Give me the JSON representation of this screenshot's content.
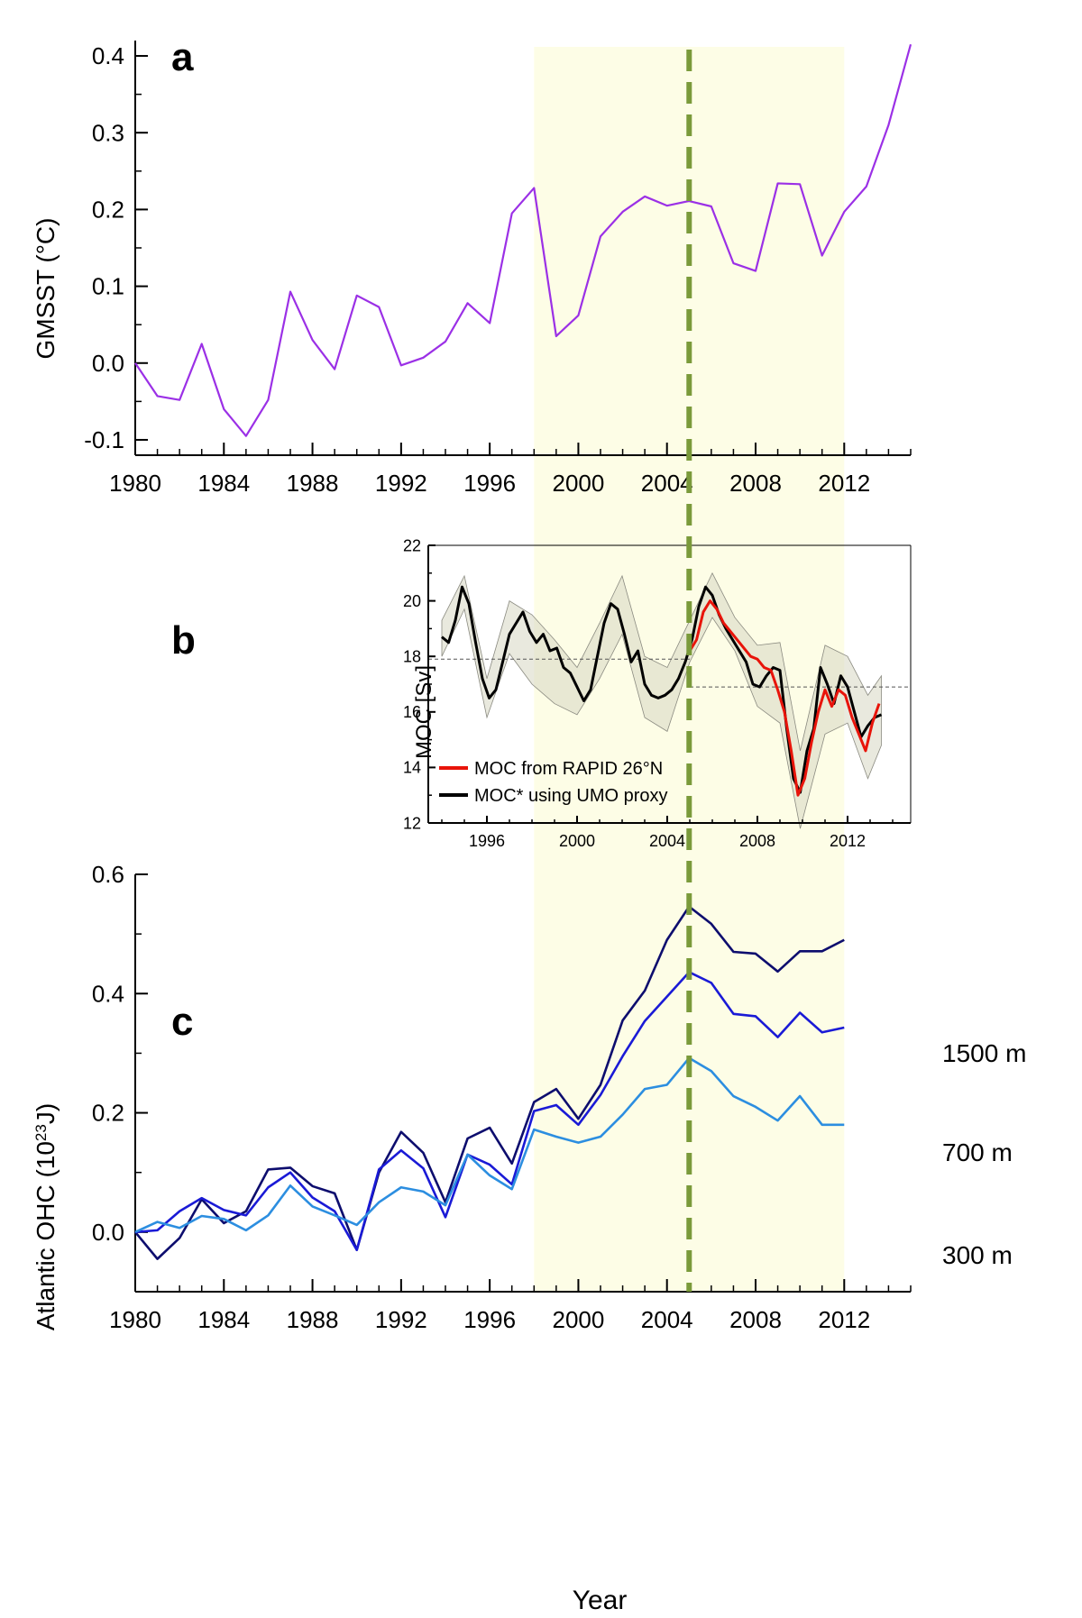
{
  "chart_data": [
    {
      "panel": "a",
      "type": "line",
      "ylabel": "GMSST (°C)",
      "xlabel": "",
      "xlim": [
        1980,
        2015
      ],
      "ylim": [
        -0.12,
        0.42
      ],
      "xticks": [
        "1980",
        "1984",
        "1988",
        "1992",
        "1996",
        "2000",
        "2004",
        "2008",
        "2012"
      ],
      "yticks": [
        "-0.1",
        "0.0",
        "0.1",
        "0.2",
        "0.3",
        "0.4"
      ],
      "shaded_span": [
        1998,
        2012
      ],
      "vline": 2005,
      "series": [
        {
          "color": "#9b30e6",
          "x": [
            1980,
            1981,
            1982,
            1983,
            1984,
            1985,
            1986,
            1987,
            1988,
            1989,
            1990,
            1991,
            1992,
            1993,
            1994,
            1995,
            1996,
            1997,
            1998,
            1999,
            2000,
            2001,
            2002,
            2003,
            2004,
            2005,
            2006,
            2007,
            2008,
            2009,
            2010,
            2011,
            2012,
            2013,
            2014,
            2015
          ],
          "values": [
            0.0,
            -0.043,
            -0.048,
            0.025,
            -0.06,
            -0.095,
            -0.048,
            0.093,
            0.03,
            -0.008,
            0.088,
            0.073,
            -0.003,
            0.007,
            0.028,
            0.078,
            0.052,
            0.195,
            0.228,
            0.035,
            0.062,
            0.165,
            0.197,
            0.217,
            0.205,
            0.211,
            0.204,
            0.13,
            0.12,
            0.234,
            0.233,
            0.14,
            0.197,
            0.23,
            0.31,
            0.415
          ]
        }
      ]
    },
    {
      "panel": "b",
      "type": "line",
      "ylabel": "MOC [Sv]",
      "xlabel": "",
      "xlim": [
        1993.4,
        2014.8
      ],
      "ylim": [
        12,
        22
      ],
      "xticks": [
        "1996",
        "2000",
        "2004",
        "2008",
        "2012"
      ],
      "yticks": [
        "12",
        "14",
        "16",
        "18",
        "20",
        "22"
      ],
      "hlines": [
        {
          "x": [
            1993.4,
            2005.0
          ],
          "value": 17.9
        },
        {
          "x": [
            2005.0,
            2014.8
          ],
          "value": 16.9
        }
      ],
      "series": [
        {
          "name": "MOC* using UMO proxy",
          "color": "#000000",
          "x": [
            1994.0,
            1994.3,
            1994.6,
            1994.9,
            1995.2,
            1995.5,
            1995.8,
            1996.1,
            1996.4,
            1996.7,
            1997.0,
            1997.3,
            1997.6,
            1997.9,
            1998.2,
            1998.5,
            1998.8,
            1999.1,
            1999.4,
            1999.7,
            2000.0,
            2000.3,
            2000.6,
            2000.9,
            2001.2,
            2001.5,
            2001.8,
            2002.1,
            2002.4,
            2002.7,
            2003.0,
            2003.3,
            2003.6,
            2003.9,
            2004.2,
            2004.5,
            2004.8,
            2005.1,
            2005.4,
            2005.7,
            2006.0,
            2006.3,
            2006.6,
            2006.9,
            2007.2,
            2007.5,
            2007.8,
            2008.1,
            2008.4,
            2008.7,
            2009.0,
            2009.3,
            2009.6,
            2009.9,
            2010.2,
            2010.5,
            2010.8,
            2011.1,
            2011.4,
            2011.7,
            2012.0,
            2012.3,
            2012.6,
            2012.9,
            2013.2,
            2013.5
          ],
          "values": [
            18.7,
            18.5,
            19.3,
            20.5,
            19.9,
            18.5,
            17.2,
            16.5,
            16.8,
            17.8,
            18.8,
            19.2,
            19.6,
            18.9,
            18.5,
            18.8,
            18.2,
            18.3,
            17.6,
            17.4,
            16.9,
            16.4,
            16.8,
            18.0,
            19.2,
            19.9,
            19.7,
            18.8,
            17.8,
            18.2,
            17.0,
            16.6,
            16.5,
            16.6,
            16.8,
            17.2,
            17.8,
            18.6,
            19.8,
            20.5,
            20.2,
            19.5,
            19.0,
            18.6,
            18.2,
            17.8,
            17.0,
            16.9,
            17.3,
            17.6,
            17.5,
            15.4,
            13.6,
            13.1,
            14.6,
            15.4,
            17.6,
            17.0,
            16.3,
            17.3,
            16.9,
            16.0,
            15.1,
            15.5,
            15.8,
            15.9
          ]
        },
        {
          "name": "MOC from RAPID 26°N",
          "color": "#e8140a",
          "x": [
            2005.0,
            2005.3,
            2005.6,
            2005.9,
            2006.2,
            2006.5,
            2006.8,
            2007.1,
            2007.4,
            2007.7,
            2008.0,
            2008.3,
            2008.6,
            2008.9,
            2009.2,
            2009.5,
            2009.8,
            2010.1,
            2010.4,
            2010.7,
            2011.0,
            2011.3,
            2011.6,
            2011.9,
            2012.2,
            2012.5,
            2012.8,
            2013.1,
            2013.4
          ],
          "values": [
            18.2,
            18.6,
            19.6,
            20.0,
            19.7,
            19.2,
            18.9,
            18.6,
            18.3,
            18.0,
            17.9,
            17.6,
            17.5,
            16.8,
            16.0,
            14.6,
            13.0,
            13.6,
            14.9,
            16.0,
            16.8,
            16.2,
            16.8,
            16.6,
            15.8,
            15.2,
            14.6,
            15.6,
            16.3
          ]
        }
      ],
      "band": {
        "color": "#d7d7c2",
        "x": [
          1994.0,
          1995.0,
          1996.0,
          1997.0,
          1998.0,
          1999.0,
          2000.0,
          2001.0,
          2002.0,
          2003.0,
          2004.0,
          2005.0,
          2006.0,
          2007.0,
          2008.0,
          2009.0,
          2009.9,
          2011.0,
          2012.0,
          2012.9,
          2013.5
        ],
        "lower": [
          18.0,
          19.7,
          15.8,
          18.1,
          17.0,
          16.3,
          15.9,
          17.2,
          18.8,
          15.8,
          15.3,
          17.8,
          19.4,
          18.2,
          16.2,
          15.6,
          11.8,
          15.2,
          15.6,
          13.6,
          14.8
        ],
        "upper": [
          19.3,
          20.9,
          17.2,
          20.0,
          19.5,
          18.6,
          17.6,
          19.2,
          20.9,
          18.0,
          17.6,
          19.3,
          21.0,
          19.4,
          18.4,
          18.5,
          14.6,
          18.4,
          18.0,
          16.6,
          17.3
        ]
      },
      "legend": "bottom-left"
    },
    {
      "panel": "c",
      "type": "line",
      "ylabel": "Atlantic OHC (10²³J)",
      "xlabel": "Year",
      "xlim": [
        1980,
        2015
      ],
      "ylim": [
        -0.1,
        0.6
      ],
      "xticks": [
        "1980",
        "1984",
        "1988",
        "1992",
        "1996",
        "2000",
        "2004",
        "2008",
        "2012"
      ],
      "yticks": [
        "0.0",
        "0.2",
        "0.4",
        "0.6"
      ],
      "shaded_span": [
        1998,
        2012
      ],
      "vline": 2005,
      "series": [
        {
          "name": "1500 m",
          "color": "#0d0d6e",
          "x": [
            1980,
            1981,
            1982,
            1983,
            1984,
            1985,
            1986,
            1987,
            1988,
            1989,
            1990,
            1991,
            1992,
            1993,
            1994,
            1995,
            1996,
            1997,
            1998,
            1999,
            2000,
            2001,
            2002,
            2003,
            2004,
            2005,
            2006,
            2007,
            2008,
            2009,
            2010,
            2011,
            2012
          ],
          "values": [
            0.0,
            -0.045,
            -0.01,
            0.055,
            0.015,
            0.035,
            0.105,
            0.108,
            0.077,
            0.065,
            -0.03,
            0.1,
            0.168,
            0.133,
            0.05,
            0.157,
            0.175,
            0.115,
            0.218,
            0.24,
            0.19,
            0.247,
            0.355,
            0.405,
            0.49,
            0.546,
            0.517,
            0.47,
            0.467,
            0.437,
            0.471,
            0.471,
            0.49
          ]
        },
        {
          "name": "700 m",
          "color": "#1a1ad6",
          "x": [
            1980,
            1981,
            1982,
            1983,
            1984,
            1985,
            1986,
            1987,
            1988,
            1989,
            1990,
            1991,
            1992,
            1993,
            1994,
            1995,
            1996,
            1997,
            1998,
            1999,
            2000,
            2001,
            2002,
            2003,
            2004,
            2005,
            2006,
            2007,
            2008,
            2009,
            2010,
            2011,
            2012
          ],
          "values": [
            0.0,
            0.003,
            0.035,
            0.057,
            0.037,
            0.028,
            0.075,
            0.1,
            0.058,
            0.035,
            -0.03,
            0.105,
            0.137,
            0.107,
            0.025,
            0.13,
            0.113,
            0.08,
            0.203,
            0.213,
            0.18,
            0.23,
            0.295,
            0.354,
            0.395,
            0.436,
            0.418,
            0.366,
            0.362,
            0.327,
            0.368,
            0.335,
            0.343
          ]
        },
        {
          "name": "300 m",
          "color": "#2c8ee0",
          "x": [
            1980,
            1981,
            1982,
            1983,
            1984,
            1985,
            1986,
            1987,
            1988,
            1989,
            1990,
            1991,
            1992,
            1993,
            1994,
            1995,
            1996,
            1997,
            1998,
            1999,
            2000,
            2001,
            2002,
            2003,
            2004,
            2005,
            2006,
            2007,
            2008,
            2009,
            2010,
            2011,
            2012
          ],
          "values": [
            0.0,
            0.017,
            0.007,
            0.027,
            0.022,
            0.003,
            0.028,
            0.078,
            0.043,
            0.028,
            0.012,
            0.05,
            0.075,
            0.068,
            0.045,
            0.13,
            0.095,
            0.072,
            0.172,
            0.16,
            0.15,
            0.16,
            0.197,
            0.24,
            0.247,
            0.292,
            0.27,
            0.228,
            0.21,
            0.187,
            0.228,
            0.18,
            0.18
          ]
        }
      ]
    }
  ]
}
